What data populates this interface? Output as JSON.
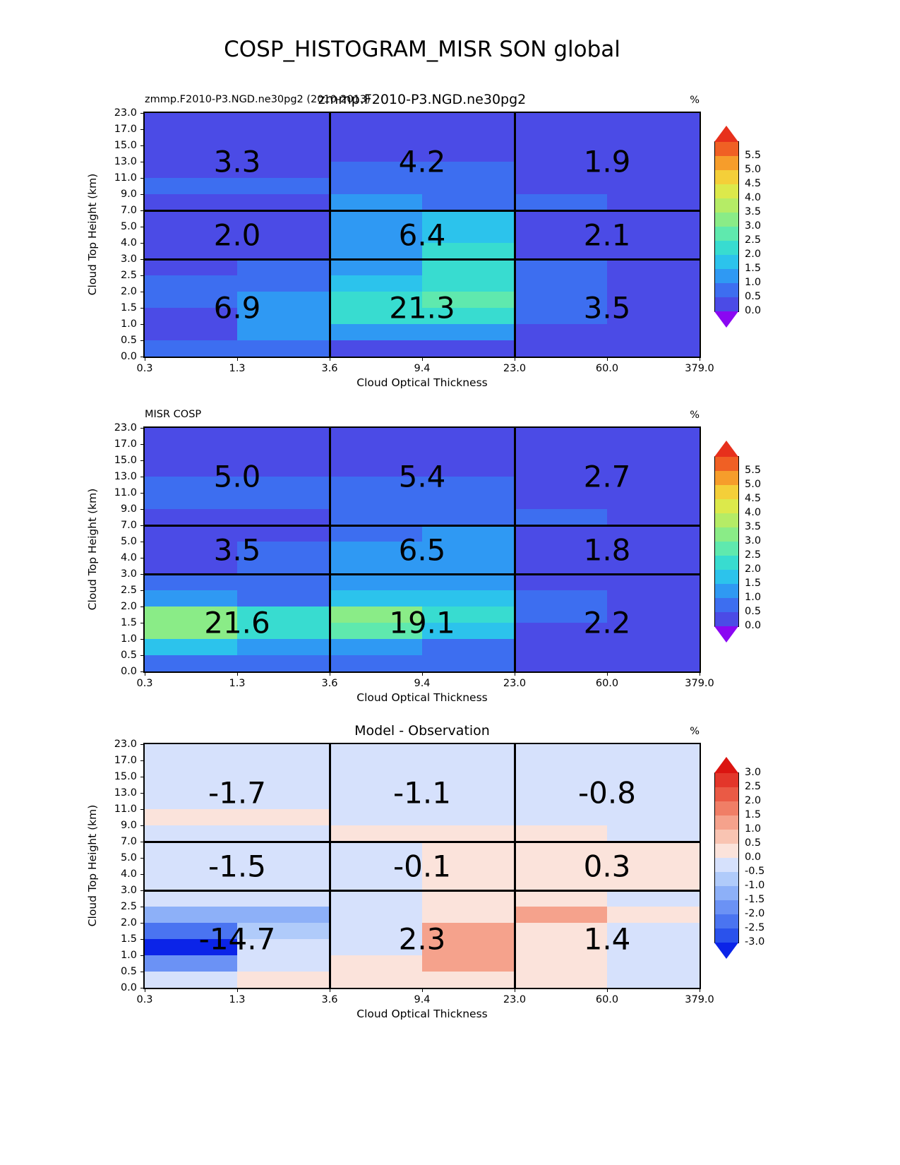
{
  "page_title": "COSP_HISTOGRAM_MISR SON global",
  "colors": {
    "rainbow": {
      "under": "#8A07F2",
      "over": "#E7301C",
      "bands": [
        "#4B4BE6",
        "#3D6EF0",
        "#2F99F3",
        "#2CC3EC",
        "#38DCD0",
        "#5FE9AE",
        "#8AEC87",
        "#B5EC66",
        "#DCE94B",
        "#F4CF39",
        "#F69D2B",
        "#F06024"
      ]
    },
    "diverge": {
      "under": "#0B24E8",
      "over": "#DB1410",
      "bands": [
        "#2A52EC",
        "#4A74F1",
        "#6B92F5",
        "#8DB0F8",
        "#B0CBFA",
        "#D6E1FC",
        "#FBE3DB",
        "#F9C4B2",
        "#F5A28C",
        "#F07E66",
        "#EA5A45",
        "#E3362A"
      ]
    }
  },
  "chart_data": [
    {
      "type": "heatmap",
      "panel": "model",
      "small_title": "zmmp.F2010-P3.NGD.ne30pg2 (2010-2013)",
      "big_title": "zmmp.F2010-P3.NGD.ne30pg2",
      "unit": "%",
      "xlabel": "Cloud Optical Thickness",
      "ylabel": "Cloud Top Height (km)",
      "x_bin_edges": [
        0.3,
        1.3,
        3.6,
        9.4,
        23.0,
        60.0,
        379.0
      ],
      "y_bin_edges": [
        0.0,
        0.5,
        1.0,
        1.5,
        2.0,
        2.5,
        3.0,
        4.0,
        5.0,
        7.0,
        9.0,
        11.0,
        13.0,
        15.0,
        17.0,
        23.0
      ],
      "x_tick_labels": [
        "0.3",
        "1.3",
        "3.6",
        "9.4",
        "23.0",
        "60.0",
        "379.0"
      ],
      "y_tick_labels_top_down": [
        "23.0",
        "17.0",
        "15.0",
        "13.0",
        "11.0",
        "9.0",
        "7.0",
        "5.0",
        "4.0",
        "3.0",
        "2.5",
        "2.0",
        "1.5",
        "1.0",
        "0.5",
        "0.0"
      ],
      "region_labels": [
        [
          "3.3",
          "4.2",
          "1.9"
        ],
        [
          "2.0",
          "6.4",
          "2.1"
        ],
        [
          "6.9",
          "21.3",
          "3.5"
        ]
      ],
      "colorbar": {
        "cmap": "rainbow",
        "vmin": 0,
        "vmax": 6,
        "band_size": 0.5,
        "tick_labels_top_down": [
          "5.5",
          "5.0",
          "4.5",
          "4.0",
          "3.5",
          "3.0",
          "2.5",
          "2.0",
          "1.5",
          "1.0",
          "0.5",
          "0.0"
        ]
      },
      "values_rows_top_down": [
        [
          0.2,
          0.2,
          0.2,
          0.2,
          0.2,
          0.2
        ],
        [
          0.2,
          0.2,
          0.2,
          0.2,
          0.2,
          0.2
        ],
        [
          0.2,
          0.2,
          0.2,
          0.2,
          0.2,
          0.2
        ],
        [
          0.2,
          0.2,
          0.8,
          0.8,
          0.2,
          0.2
        ],
        [
          0.8,
          0.8,
          0.8,
          0.8,
          0.2,
          0.2
        ],
        [
          0.3,
          0.3,
          1.2,
          0.8,
          0.8,
          0.3
        ],
        [
          0.3,
          0.3,
          1.2,
          1.7,
          0.3,
          0.3
        ],
        [
          0.3,
          0.3,
          1.4,
          1.9,
          0.3,
          0.3
        ],
        [
          0.3,
          0.3,
          1.4,
          2.1,
          0.4,
          0.3
        ],
        [
          0.3,
          0.6,
          1.4,
          2.1,
          0.6,
          0.3
        ],
        [
          0.6,
          0.8,
          1.7,
          2.4,
          0.6,
          0.3
        ],
        [
          0.6,
          1.0,
          2.4,
          2.7,
          0.6,
          0.3
        ],
        [
          0.3,
          1.2,
          2.1,
          2.4,
          0.6,
          0.3
        ],
        [
          0.3,
          1.2,
          1.4,
          1.2,
          0.4,
          0.3
        ],
        [
          0.8,
          0.8,
          0.4,
          0.3,
          0.2,
          0.2
        ]
      ]
    },
    {
      "type": "heatmap",
      "panel": "observation",
      "small_title": "MISR COSP",
      "unit": "%",
      "xlabel": "Cloud Optical Thickness",
      "ylabel": "Cloud Top Height (km)",
      "x_bin_edges": [
        0.3,
        1.3,
        3.6,
        9.4,
        23.0,
        60.0,
        379.0
      ],
      "y_bin_edges": [
        0.0,
        0.5,
        1.0,
        1.5,
        2.0,
        2.5,
        3.0,
        4.0,
        5.0,
        7.0,
        9.0,
        11.0,
        13.0,
        15.0,
        17.0,
        23.0
      ],
      "x_tick_labels": [
        "0.3",
        "1.3",
        "3.6",
        "9.4",
        "23.0",
        "60.0",
        "379.0"
      ],
      "y_tick_labels_top_down": [
        "23.0",
        "17.0",
        "15.0",
        "13.0",
        "11.0",
        "9.0",
        "7.0",
        "5.0",
        "4.0",
        "3.0",
        "2.5",
        "2.0",
        "1.5",
        "1.0",
        "0.5",
        "0.0"
      ],
      "region_labels": [
        [
          "5.0",
          "5.4",
          "2.7"
        ],
        [
          "3.5",
          "6.5",
          "1.8"
        ],
        [
          "21.6",
          "19.1",
          "2.2"
        ]
      ],
      "colorbar": {
        "cmap": "rainbow",
        "vmin": 0,
        "vmax": 6,
        "band_size": 0.5,
        "tick_labels_top_down": [
          "5.5",
          "5.0",
          "4.5",
          "4.0",
          "3.5",
          "3.0",
          "2.5",
          "2.0",
          "1.5",
          "1.0",
          "0.5",
          "0.0"
        ]
      },
      "values_rows_top_down": [
        [
          0.2,
          0.2,
          0.2,
          0.2,
          0.2,
          0.2
        ],
        [
          0.2,
          0.2,
          0.3,
          0.3,
          0.2,
          0.2
        ],
        [
          0.3,
          0.3,
          0.3,
          0.3,
          0.2,
          0.2
        ],
        [
          0.8,
          0.8,
          0.8,
          0.8,
          0.2,
          0.2
        ],
        [
          0.8,
          0.8,
          0.8,
          0.8,
          0.3,
          0.2
        ],
        [
          0.3,
          0.3,
          0.6,
          0.6,
          0.8,
          0.3
        ],
        [
          0.3,
          0.3,
          0.8,
          1.2,
          0.3,
          0.2
        ],
        [
          0.4,
          0.6,
          1.3,
          1.4,
          0.3,
          0.2
        ],
        [
          0.4,
          0.6,
          1.3,
          1.4,
          0.3,
          0.2
        ],
        [
          0.8,
          0.6,
          1.4,
          1.4,
          0.3,
          0.2
        ],
        [
          1.2,
          0.9,
          1.7,
          1.7,
          0.6,
          0.2
        ],
        [
          3.3,
          2.3,
          3.3,
          2.3,
          0.6,
          0.2
        ],
        [
          3.0,
          2.0,
          2.7,
          1.9,
          0.4,
          0.2
        ],
        [
          1.8,
          1.2,
          1.3,
          0.8,
          0.3,
          0.2
        ],
        [
          0.9,
          0.8,
          0.8,
          0.6,
          0.3,
          0.2
        ]
      ]
    },
    {
      "type": "heatmap",
      "panel": "difference",
      "big_title": "Model - Observation",
      "unit": "%",
      "xlabel": "Cloud Optical Thickness",
      "ylabel": "Cloud Top Height (km)",
      "x_bin_edges": [
        0.3,
        1.3,
        3.6,
        9.4,
        23.0,
        60.0,
        379.0
      ],
      "y_bin_edges": [
        0.0,
        0.5,
        1.0,
        1.5,
        2.0,
        2.5,
        3.0,
        4.0,
        5.0,
        7.0,
        9.0,
        11.0,
        13.0,
        15.0,
        17.0,
        23.0
      ],
      "x_tick_labels": [
        "0.3",
        "1.3",
        "3.6",
        "9.4",
        "23.0",
        "60.0",
        "379.0"
      ],
      "y_tick_labels_top_down": [
        "23.0",
        "17.0",
        "15.0",
        "13.0",
        "11.0",
        "9.0",
        "7.0",
        "5.0",
        "4.0",
        "3.0",
        "2.5",
        "2.0",
        "1.5",
        "1.0",
        "0.5",
        "0.0"
      ],
      "region_labels": [
        [
          "-1.7",
          "-1.1",
          "-0.8"
        ],
        [
          "-1.5",
          "-0.1",
          "0.3"
        ],
        [
          "-14.7",
          "2.3",
          "1.4"
        ]
      ],
      "colorbar": {
        "cmap": "diverge",
        "vmin": -3,
        "vmax": 3,
        "band_size": 0.5,
        "tick_labels_top_down": [
          "3.0",
          "2.5",
          "2.0",
          "1.5",
          "1.0",
          "0.5",
          "0.0",
          "-0.5",
          "-1.0",
          "-1.5",
          "-2.0",
          "-2.5",
          "-3.0"
        ]
      },
      "values_rows_top_down": [
        [
          -0.2,
          -0.2,
          -0.2,
          -0.2,
          -0.2,
          -0.2
        ],
        [
          -0.2,
          -0.2,
          -0.2,
          -0.2,
          -0.2,
          -0.2
        ],
        [
          -0.2,
          -0.2,
          -0.2,
          -0.2,
          -0.2,
          -0.2
        ],
        [
          -0.2,
          -0.2,
          -0.2,
          -0.2,
          -0.2,
          -0.2
        ],
        [
          0.2,
          0.2,
          -0.2,
          -0.2,
          -0.2,
          -0.2
        ],
        [
          -0.2,
          -0.2,
          0.2,
          0.2,
          0.2,
          -0.2
        ],
        [
          -0.2,
          -0.2,
          -0.2,
          0.2,
          0.2,
          0.2
        ],
        [
          -0.2,
          -0.2,
          -0.2,
          0.2,
          0.2,
          0.2
        ],
        [
          -0.2,
          -0.2,
          -0.2,
          0.2,
          0.2,
          0.2
        ],
        [
          -0.2,
          -0.3,
          -0.3,
          0.2,
          0.2,
          -0.2
        ],
        [
          -1.2,
          -1.2,
          -0.3,
          0.4,
          1.2,
          0.2
        ],
        [
          -2.2,
          -0.8,
          -0.3,
          1.2,
          0.2,
          -0.2
        ],
        [
          -3.3,
          -0.3,
          -0.3,
          1.2,
          0.2,
          -0.2
        ],
        [
          -1.7,
          -0.3,
          0.2,
          1.2,
          0.3,
          -0.2
        ],
        [
          -0.3,
          0.2,
          0.2,
          0.3,
          0.2,
          -0.2
        ]
      ]
    }
  ]
}
